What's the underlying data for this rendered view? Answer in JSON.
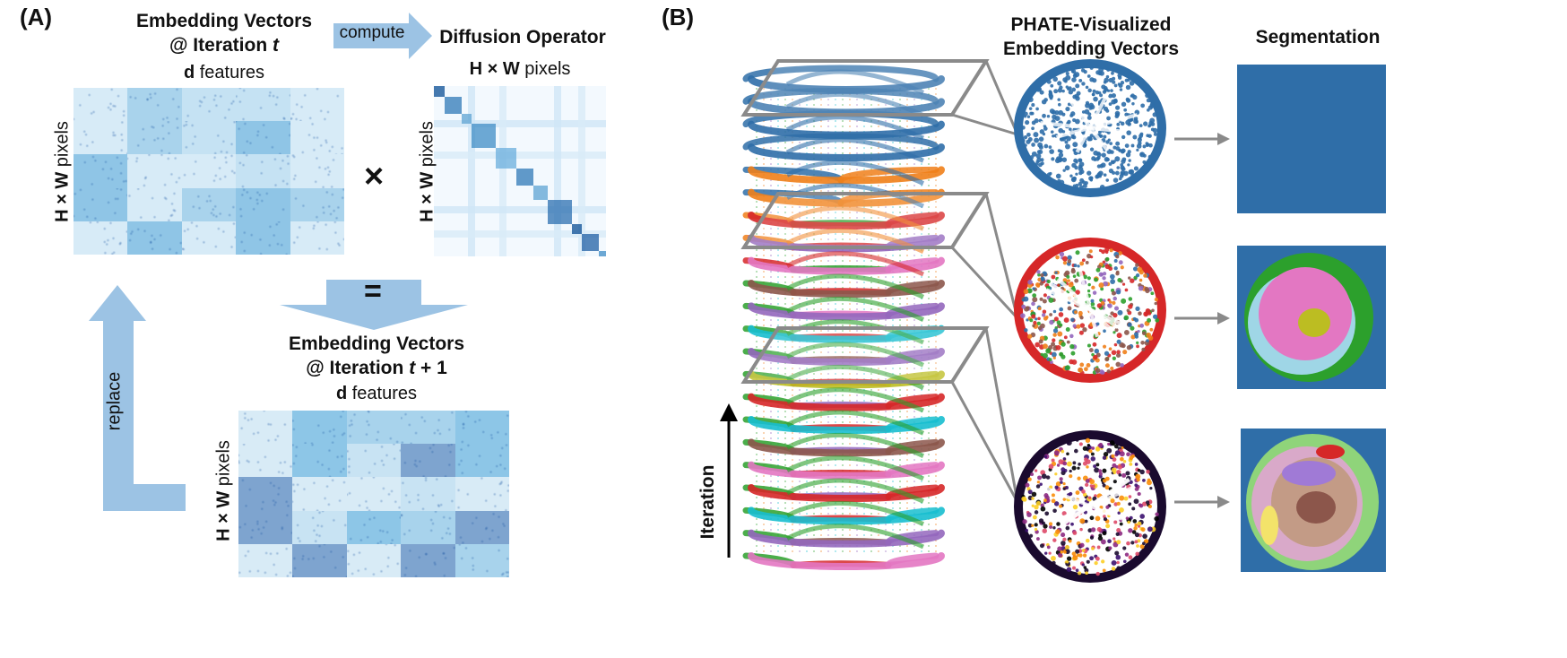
{
  "panel_a": {
    "label": "(A)",
    "emb_title_line1": "Embedding Vectors",
    "emb_title_line2_prefix": "@ Iteration ",
    "emb_title_line2_var": "t",
    "features_bold": "d",
    "features_rest": " features",
    "pixels_bold": "H × W",
    "pixels_rest": " pixels",
    "compute_label": "compute",
    "diffusion_title": "Diffusion Operator",
    "times_symbol": "×",
    "equals_symbol": "=",
    "replace_label": "replace",
    "emb_next_line1": "Embedding Vectors",
    "emb_next_line2_prefix": "@ Iteration ",
    "emb_next_line2_var": "t",
    "emb_next_line2_suffix": " + 1"
  },
  "panel_b": {
    "label": "(B)",
    "phate_title_line1": "PHATE-Visualized",
    "phate_title_line2": "Embedding Vectors",
    "segmentation_title": "Segmentation",
    "iteration_label": "Iteration"
  },
  "colors": {
    "arrow_fill": "#9cc3e4",
    "tab_blue": "#2f6ea8",
    "tab_orange": "#f07f1a",
    "tab_green": "#2ca02c",
    "tab_red": "#d62728",
    "tab_purple": "#9467bd",
    "tab_brown": "#8c564b",
    "tab_pink": "#e377c2",
    "tab_olive": "#bcbd22",
    "tab_cyan": "#17becf"
  }
}
